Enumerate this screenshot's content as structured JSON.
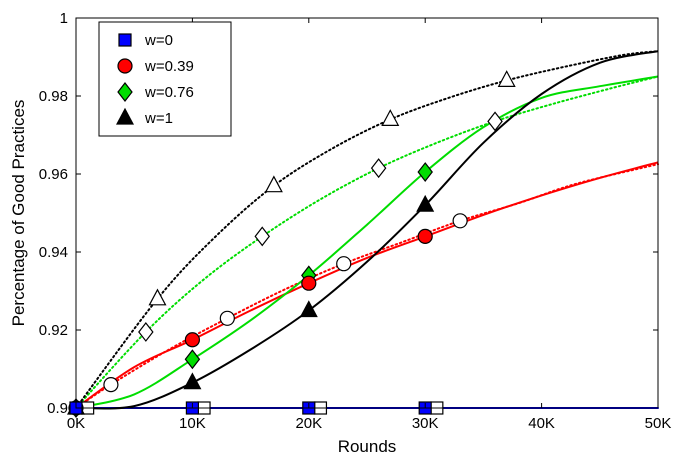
{
  "chart_data": {
    "type": "line",
    "xlabel": "Rounds",
    "ylabel": "Percentage of Good Practices",
    "xlim": [
      0,
      50000
    ],
    "ylim": [
      0.9,
      1.0
    ],
    "x_ticks": [
      0,
      10000,
      20000,
      30000,
      40000,
      50000
    ],
    "x_tick_labels": [
      "0K",
      "10K",
      "20K",
      "30K",
      "40K",
      "50K"
    ],
    "y_ticks": [
      0.9,
      0.92,
      0.94,
      0.96,
      0.98,
      1.0
    ],
    "y_tick_labels": [
      "0.9",
      "0.92",
      "0.94",
      "0.96",
      "0.98",
      "1"
    ],
    "grid": false,
    "legend_position": "top-left",
    "series": [
      {
        "name": "w=0",
        "color": "#0000ff",
        "marker": "square",
        "solid": {
          "x": [
            0,
            10000,
            20000,
            30000,
            40000,
            50000
          ],
          "y": [
            0.9,
            0.9,
            0.9,
            0.9,
            0.9,
            0.9
          ]
        },
        "solid_markers": {
          "x": [
            0,
            10000,
            20000,
            30000
          ],
          "y": [
            0.9,
            0.9,
            0.9,
            0.9
          ]
        },
        "dotted": {
          "x": [
            0,
            10000,
            20000,
            30000,
            40000,
            50000
          ],
          "y": [
            0.9,
            0.9,
            0.9,
            0.9,
            0.9,
            0.9
          ]
        },
        "dotted_markers": {
          "x": [
            1000,
            11000,
            21000,
            31000
          ],
          "y": [
            0.9,
            0.9,
            0.9,
            0.9
          ]
        }
      },
      {
        "name": "w=0.39",
        "color": "#ff0000",
        "marker": "circle",
        "solid": {
          "x": [
            0,
            5000,
            10000,
            15000,
            20000,
            25000,
            30000,
            35000,
            40000,
            45000,
            50000
          ],
          "y": [
            0.9,
            0.9105,
            0.9175,
            0.925,
            0.932,
            0.9385,
            0.944,
            0.9495,
            0.9545,
            0.959,
            0.963
          ]
        },
        "solid_markers": {
          "x": [
            0,
            10000,
            20000,
            30000
          ],
          "y": [
            0.9,
            0.9175,
            0.932,
            0.944
          ]
        },
        "dotted": {
          "x": [
            0,
            3000,
            8000,
            13000,
            18000,
            23000,
            28000,
            33000,
            38000,
            43000,
            50000
          ],
          "y": [
            0.9,
            0.906,
            0.915,
            0.923,
            0.9305,
            0.937,
            0.9425,
            0.948,
            0.9525,
            0.9575,
            0.9625
          ]
        },
        "dotted_markers": {
          "x": [
            3000,
            13000,
            23000,
            33000
          ],
          "y": [
            0.906,
            0.923,
            0.937,
            0.948
          ]
        }
      },
      {
        "name": "w=0.76",
        "color": "#00dd00",
        "marker": "diamond",
        "solid": {
          "x": [
            0,
            5000,
            10000,
            15000,
            20000,
            25000,
            30000,
            35000,
            40000,
            45000,
            50000
          ],
          "y": [
            0.9,
            0.9035,
            0.9125,
            0.9225,
            0.934,
            0.947,
            0.9605,
            0.972,
            0.9795,
            0.9825,
            0.985
          ]
        },
        "solid_markers": {
          "x": [
            0,
            10000,
            20000,
            30000
          ],
          "y": [
            0.9,
            0.9125,
            0.934,
            0.9605
          ]
        },
        "dotted": {
          "x": [
            0,
            6000,
            11000,
            16000,
            21000,
            26000,
            31000,
            36000,
            41000,
            46000,
            50000
          ],
          "y": [
            0.9,
            0.9195,
            0.933,
            0.944,
            0.9535,
            0.9615,
            0.968,
            0.9735,
            0.978,
            0.982,
            0.985
          ]
        },
        "dotted_markers": {
          "x": [
            6000,
            16000,
            26000,
            36000
          ],
          "y": [
            0.9195,
            0.944,
            0.9615,
            0.9735
          ]
        }
      },
      {
        "name": "w=1",
        "color": "#000000",
        "marker": "triangle",
        "solid": {
          "x": [
            0,
            5000,
            10000,
            15000,
            20000,
            25000,
            30000,
            35000,
            40000,
            45000,
            50000
          ],
          "y": [
            0.9,
            0.9005,
            0.9065,
            0.915,
            0.925,
            0.9375,
            0.952,
            0.968,
            0.9805,
            0.9885,
            0.9915
          ]
        },
        "solid_markers": {
          "x": [
            0,
            10000,
            20000,
            30000
          ],
          "y": [
            0.9,
            0.9065,
            0.925,
            0.952
          ]
        },
        "dotted": {
          "x": [
            0,
            7000,
            12000,
            17000,
            22000,
            27000,
            32000,
            37000,
            42000,
            47000,
            50000
          ],
          "y": [
            0.9,
            0.928,
            0.944,
            0.957,
            0.9665,
            0.974,
            0.9795,
            0.984,
            0.9875,
            0.9905,
            0.9915
          ]
        },
        "dotted_markers": {
          "x": [
            7000,
            17000,
            27000,
            37000
          ],
          "y": [
            0.928,
            0.957,
            0.974,
            0.984
          ]
        }
      }
    ]
  }
}
